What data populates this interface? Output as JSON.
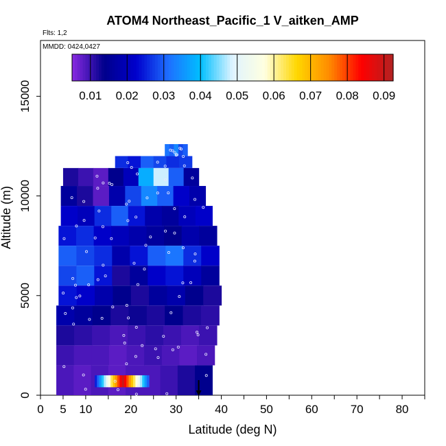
{
  "chart_data": {
    "type": "heatmap",
    "title": "ATOM4 Northeast_Pacific_1 V_aitken_AMP",
    "annotations": {
      "flights": "Flts: 1,2",
      "dates": "MMDD: 0424,0427"
    },
    "xlabel": "Latitude (deg N)",
    "ylabel": "Altitude (m)",
    "xlim": [
      0,
      85
    ],
    "ylim": [
      0,
      17800
    ],
    "x_ticks": [
      0,
      5,
      10,
      20,
      30,
      40,
      50,
      60,
      70,
      80
    ],
    "x_tick_labels": [
      "0",
      "5",
      "10",
      "20",
      "30",
      "40",
      "50",
      "60",
      "70",
      "80"
    ],
    "y_ticks": [
      0,
      5000,
      10000,
      15000
    ],
    "y_tick_labels": [
      "0",
      "5000",
      "10000",
      "15000"
    ],
    "colorbar": {
      "range": [
        0.005,
        0.0925
      ],
      "ticks": [
        0.01,
        0.02,
        0.03,
        0.04,
        0.05,
        0.06,
        0.07,
        0.08,
        0.09
      ],
      "tick_labels": [
        "0.01",
        "0.02",
        "0.03",
        "0.04",
        "0.05",
        "0.06",
        "0.07",
        "0.08",
        "0.09"
      ],
      "colors": [
        "#8a2be2",
        "#00008b",
        "#0000cd",
        "#1e6fff",
        "#00bfff",
        "#e0f4ff",
        "#ffffe0",
        "#ffd700",
        "#ff8c00",
        "#ff0000",
        "#b22222"
      ]
    },
    "swath": [
      {
        "alt_bottom": 12000,
        "alt_top": 12600,
        "lat_min": 27.5,
        "lat_max": 32.5
      },
      {
        "alt_bottom": 11400,
        "alt_top": 12000,
        "lat_min": 16.5,
        "lat_max": 33.5
      },
      {
        "alt_bottom": 10500,
        "alt_top": 11400,
        "lat_min": 5,
        "lat_max": 35
      },
      {
        "alt_bottom": 9500,
        "alt_top": 10500,
        "lat_min": 4.5,
        "lat_max": 36.5
      },
      {
        "alt_bottom": 8500,
        "alt_top": 9500,
        "lat_min": 4.5,
        "lat_max": 38
      },
      {
        "alt_bottom": 7500,
        "alt_top": 8500,
        "lat_min": 4,
        "lat_max": 39
      },
      {
        "alt_bottom": 6500,
        "alt_top": 7500,
        "lat_min": 4,
        "lat_max": 39.5
      },
      {
        "alt_bottom": 5500,
        "alt_top": 6500,
        "lat_min": 4,
        "lat_max": 39.5
      },
      {
        "alt_bottom": 4500,
        "alt_top": 5500,
        "lat_min": 4,
        "lat_max": 40
      },
      {
        "alt_bottom": 3500,
        "alt_top": 4500,
        "lat_min": 3.5,
        "lat_max": 39.5
      },
      {
        "alt_bottom": 2500,
        "alt_top": 3500,
        "lat_min": 3.5,
        "lat_max": 39
      },
      {
        "alt_bottom": 1500,
        "alt_top": 2500,
        "lat_min": 3.5,
        "lat_max": 38.5
      },
      {
        "alt_bottom": 0,
        "alt_top": 1500,
        "lat_min": 3.5,
        "lat_max": 38
      }
    ],
    "band_values": [
      [
        0.032,
        0.03,
        0.034,
        0.028,
        0.03
      ],
      [
        0.026,
        0.024,
        0.03,
        0.028,
        0.026,
        0.027
      ],
      [
        0.012,
        0.01,
        0.008,
        0.014,
        0.02,
        0.038,
        0.048,
        0.03,
        0.016
      ],
      [
        0.016,
        0.012,
        0.008,
        0.018,
        0.028,
        0.034,
        0.03,
        0.022,
        0.018
      ],
      [
        0.022,
        0.02,
        0.026,
        0.03,
        0.024,
        0.018,
        0.016,
        0.02,
        0.022
      ],
      [
        0.024,
        0.026,
        0.022,
        0.02,
        0.018,
        0.016,
        0.014,
        0.018,
        0.016
      ],
      [
        0.03,
        0.028,
        0.026,
        0.018,
        0.024,
        0.03,
        0.032,
        0.026,
        0.022
      ],
      [
        0.028,
        0.03,
        0.024,
        0.012,
        0.016,
        0.022,
        0.024,
        0.02,
        0.016
      ],
      [
        0.024,
        0.022,
        0.018,
        0.014,
        0.012,
        0.016,
        0.018,
        0.014,
        0.012
      ],
      [
        0.018,
        0.016,
        0.014,
        0.012,
        0.013,
        0.012,
        0.014,
        0.012,
        0.011
      ],
      [
        0.012,
        0.011,
        0.01,
        0.009,
        0.01,
        0.011,
        0.01,
        0.009,
        0.01
      ],
      [
        0.01,
        0.009,
        0.009,
        0.008,
        0.009,
        0.01,
        0.009,
        0.008,
        0.009
      ],
      [
        0.009,
        0.008,
        0.009,
        0.008,
        0.009,
        0.009,
        0.01,
        0.012,
        0.014
      ]
    ],
    "hotspot": {
      "alt_bottom": 400,
      "alt_top": 1000,
      "lat_min": 12,
      "lat_max": 24,
      "peak_value": 0.09
    },
    "marker": {
      "lat": 35,
      "alt": 0
    }
  }
}
